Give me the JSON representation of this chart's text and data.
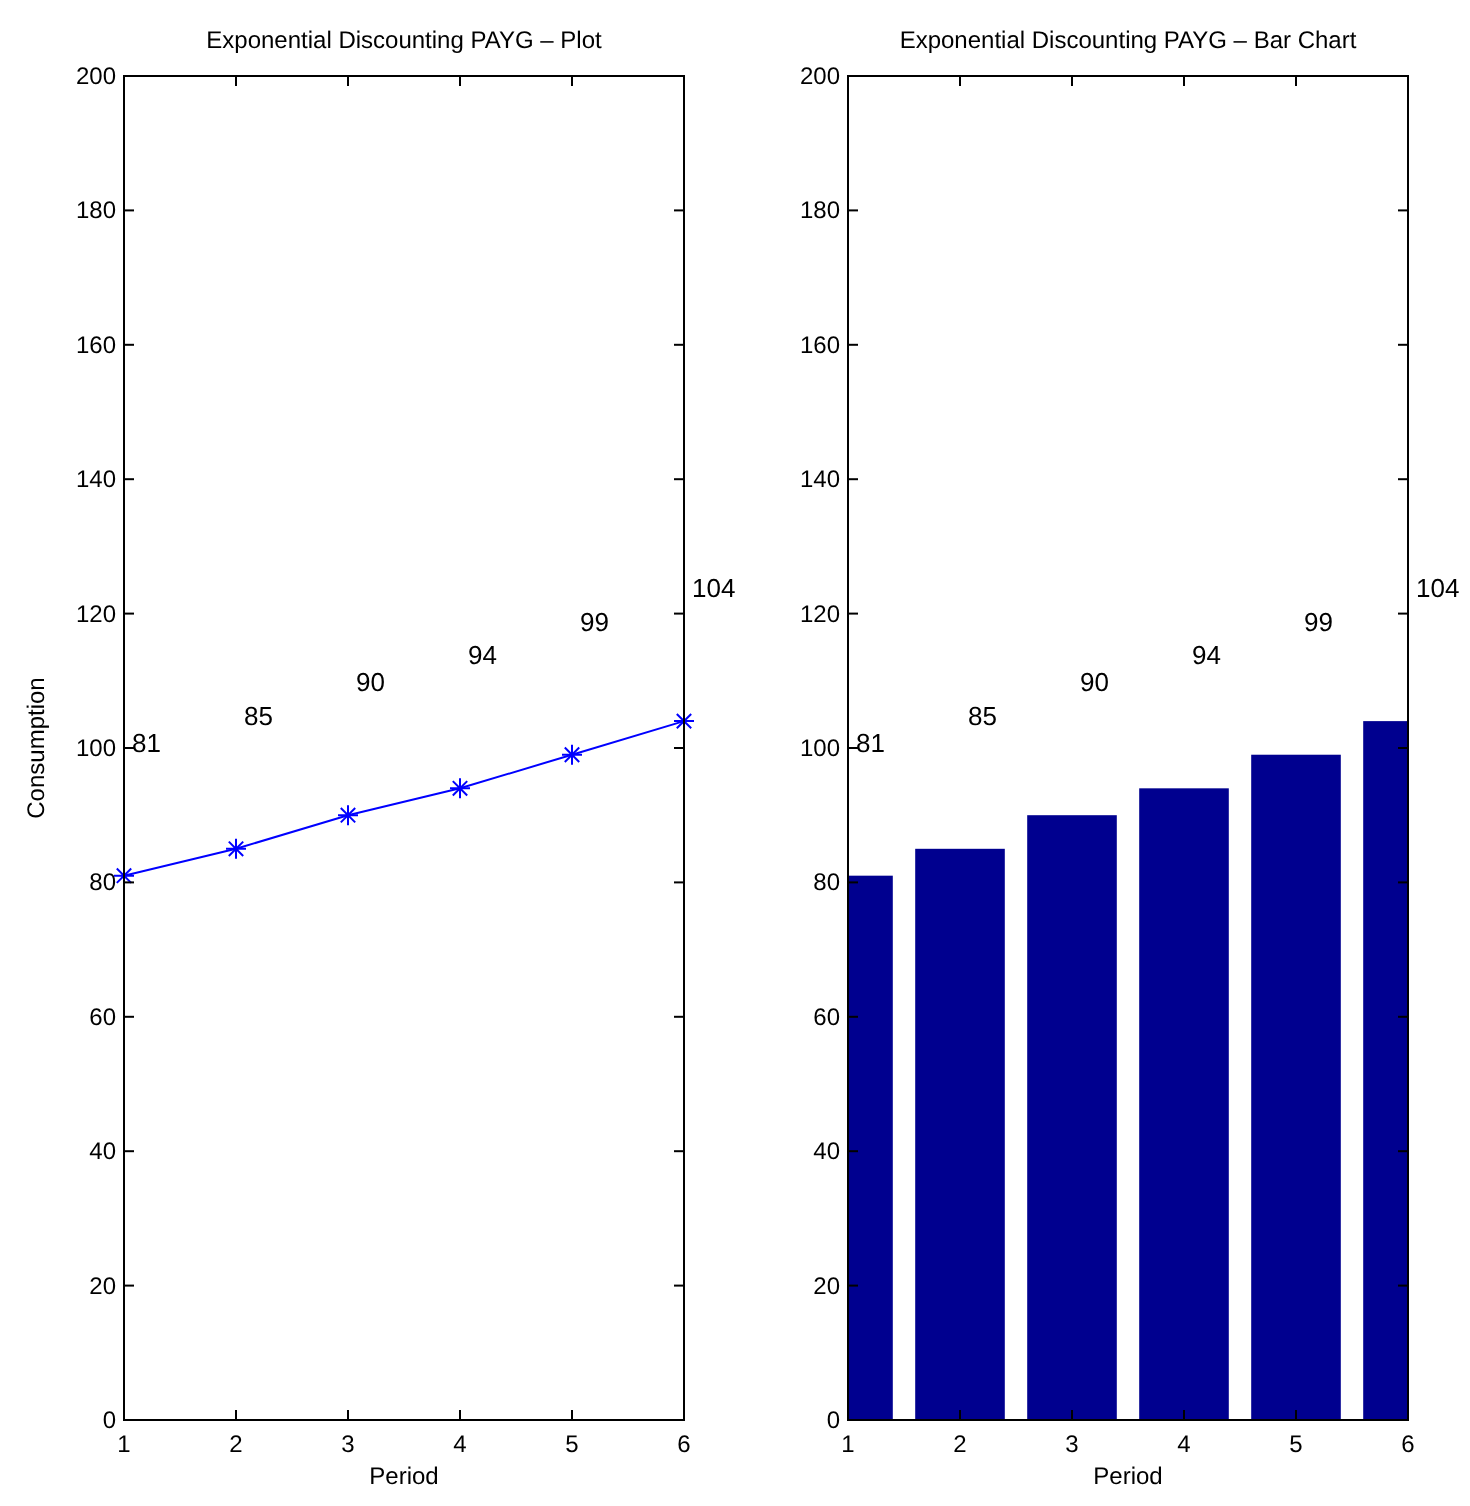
{
  "chart_data": [
    {
      "type": "line",
      "title": "Exponential Discounting PAYG – Plot",
      "xlabel": "Period",
      "ylabel": "Consumption",
      "x": [
        1,
        2,
        3,
        4,
        5,
        6
      ],
      "series": [
        {
          "color": "#0000ff",
          "values": [
            81,
            85,
            90,
            94,
            99,
            104
          ]
        }
      ],
      "annotations": [
        "81",
        "85",
        "90",
        "94",
        "99",
        "104"
      ],
      "marker": "cross",
      "line_style": "solid",
      "xlim": [
        1,
        6
      ],
      "xticks": [
        1,
        2,
        3,
        4,
        5,
        6
      ],
      "ylim": [
        0,
        200
      ],
      "yticks": [
        0,
        20,
        40,
        60,
        80,
        100,
        120,
        140,
        160,
        180,
        200
      ]
    },
    {
      "type": "bar",
      "title": "Exponential Discounting PAYG – Bar Chart",
      "xlabel": "Period",
      "x": [
        1,
        2,
        3,
        4,
        5,
        6
      ],
      "series": [
        {
          "color": "#00008f",
          "values": [
            81,
            85,
            90,
            94,
            99,
            104
          ]
        }
      ],
      "annotations": [
        "81",
        "85",
        "90",
        "94",
        "99",
        "104"
      ],
      "xlim": [
        1,
        6
      ],
      "xticks": [
        1,
        2,
        3,
        4,
        5,
        6
      ],
      "ylim": [
        0,
        200
      ],
      "yticks": [
        0,
        20,
        40,
        60,
        80,
        100,
        120,
        140,
        160,
        180,
        200
      ]
    }
  ]
}
